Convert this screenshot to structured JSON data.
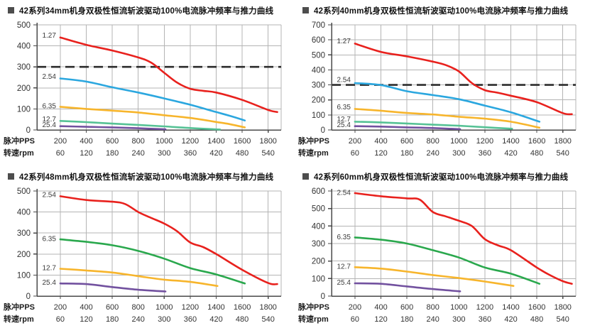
{
  "chart_data": [
    {
      "type": "line",
      "title": "42系列34mm机身双极性恒流斩波驱动100%电流脉冲频率与推力曲线",
      "x_pps_label": "脉冲PPS",
      "x_rpm_label": "转速rpm",
      "x_pps_ticks": [
        200,
        400,
        600,
        800,
        1000,
        1200,
        1400,
        1600,
        1800
      ],
      "x_rpm_ticks": [
        60,
        120,
        180,
        240,
        300,
        360,
        420,
        480,
        540
      ],
      "ylim": [
        0,
        500
      ],
      "ytick_step": 100,
      "grid": true,
      "dashed_line_y": 300,
      "series": [
        {
          "name": "1.27",
          "color": "#e8211d",
          "label_y": 450,
          "points": [
            [
              200,
              440
            ],
            [
              400,
              405
            ],
            [
              600,
              378
            ],
            [
              800,
              345
            ],
            [
              900,
              320
            ],
            [
              1000,
              272
            ],
            [
              1100,
              225
            ],
            [
              1200,
              196
            ],
            [
              1300,
              186
            ],
            [
              1400,
              178
            ],
            [
              1600,
              143
            ],
            [
              1800,
              95
            ],
            [
              1870,
              85
            ]
          ]
        },
        {
          "name": "2.54",
          "color": "#2ba7df",
          "label_y": 253,
          "points": [
            [
              200,
              245
            ],
            [
              400,
              230
            ],
            [
              600,
              203
            ],
            [
              800,
              178
            ],
            [
              1000,
              150
            ],
            [
              1200,
              120
            ],
            [
              1400,
              85
            ],
            [
              1500,
              68
            ],
            [
              1620,
              45
            ]
          ]
        },
        {
          "name": "6.35",
          "color": "#f7b52c",
          "label_y": 114,
          "points": [
            [
              200,
              110
            ],
            [
              400,
              100
            ],
            [
              600,
              92
            ],
            [
              800,
              83
            ],
            [
              1000,
              70
            ],
            [
              1200,
              57
            ],
            [
              1400,
              38
            ],
            [
              1500,
              28
            ],
            [
              1620,
              12
            ]
          ]
        },
        {
          "name": "12.7",
          "color": "#56c295",
          "label_y": 50,
          "points": [
            [
              200,
              43
            ],
            [
              400,
              37
            ],
            [
              600,
              30
            ],
            [
              800,
              24
            ],
            [
              1000,
              17
            ],
            [
              1200,
              9
            ],
            [
              1430,
              2
            ]
          ]
        },
        {
          "name": "25.4",
          "color": "#72519f",
          "label_y": 23,
          "points": [
            [
              200,
              18
            ],
            [
              400,
              15
            ],
            [
              600,
              12
            ],
            [
              800,
              8
            ],
            [
              1010,
              3
            ]
          ]
        }
      ]
    },
    {
      "type": "line",
      "title": "42系列40mm机身双极性恒流斩波驱动100%电流脉冲频率与推力曲线",
      "x_pps_label": "脉冲PPS",
      "x_rpm_label": "转速rpm",
      "x_pps_ticks": [
        200,
        400,
        600,
        800,
        1000,
        1200,
        1400,
        1600,
        1800
      ],
      "x_rpm_ticks": [
        60,
        120,
        180,
        240,
        300,
        360,
        420,
        480,
        540
      ],
      "ylim": [
        0,
        700
      ],
      "ytick_step": 100,
      "grid": true,
      "dashed_line_y": 300,
      "series": [
        {
          "name": "1.27",
          "color": "#e8211d",
          "label_y": 592,
          "points": [
            [
              200,
              575
            ],
            [
              400,
              520
            ],
            [
              600,
              490
            ],
            [
              800,
              455
            ],
            [
              900,
              432
            ],
            [
              1000,
              390
            ],
            [
              1100,
              312
            ],
            [
              1200,
              265
            ],
            [
              1300,
              248
            ],
            [
              1400,
              228
            ],
            [
              1600,
              185
            ],
            [
              1800,
              112
            ],
            [
              1870,
              105
            ]
          ]
        },
        {
          "name": "2.54",
          "color": "#2ba7df",
          "label_y": 333,
          "points": [
            [
              200,
              312
            ],
            [
              400,
              299
            ],
            [
              600,
              258
            ],
            [
              800,
              232
            ],
            [
              1000,
              205
            ],
            [
              1200,
              162
            ],
            [
              1400,
              118
            ],
            [
              1620,
              55
            ]
          ]
        },
        {
          "name": "6.35",
          "color": "#f7b52c",
          "label_y": 152,
          "points": [
            [
              200,
              140
            ],
            [
              400,
              128
            ],
            [
              600,
              113
            ],
            [
              800,
              103
            ],
            [
              1000,
              88
            ],
            [
              1200,
              75
            ],
            [
              1400,
              55
            ],
            [
              1620,
              15
            ]
          ]
        },
        {
          "name": "12.7",
          "color": "#56c295",
          "label_y": 70,
          "points": [
            [
              200,
              55
            ],
            [
              400,
              50
            ],
            [
              600,
              43
            ],
            [
              800,
              35
            ],
            [
              1000,
              28
            ],
            [
              1200,
              18
            ],
            [
              1410,
              8
            ]
          ]
        },
        {
          "name": "25.4",
          "color": "#72519f",
          "label_y": 33,
          "points": [
            [
              200,
              25
            ],
            [
              400,
              22
            ],
            [
              600,
              17
            ],
            [
              800,
              13
            ],
            [
              1010,
              5
            ]
          ]
        }
      ]
    },
    {
      "type": "line",
      "title": "42系列48mm机身双极性恒流斩波驱动100%电流脉冲频率与推力曲线",
      "x_pps_label": "脉冲PPS",
      "x_rpm_label": "转速rpm",
      "x_pps_ticks": [
        200,
        400,
        600,
        800,
        1000,
        1200,
        1400,
        1600,
        1800
      ],
      "x_rpm_ticks": [
        60,
        120,
        180,
        240,
        300,
        360,
        420,
        480,
        540
      ],
      "ylim": [
        0,
        500
      ],
      "ytick_step": 100,
      "grid": true,
      "dashed_line_y": null,
      "series": [
        {
          "name": "2.54",
          "color": "#e8211d",
          "label_y": 481,
          "points": [
            [
              200,
              475
            ],
            [
              400,
              457
            ],
            [
              600,
              449
            ],
            [
              700,
              438
            ],
            [
              800,
              400
            ],
            [
              900,
              372
            ],
            [
              1000,
              345
            ],
            [
              1100,
              308
            ],
            [
              1200,
              255
            ],
            [
              1300,
              233
            ],
            [
              1400,
              200
            ],
            [
              1600,
              125
            ],
            [
              1800,
              62
            ],
            [
              1870,
              57
            ]
          ]
        },
        {
          "name": "6.35",
          "color": "#2aa84d",
          "label_y": 272,
          "points": [
            [
              200,
              270
            ],
            [
              400,
              258
            ],
            [
              600,
              242
            ],
            [
              800,
              215
            ],
            [
              1000,
              178
            ],
            [
              1200,
              133
            ],
            [
              1400,
              103
            ],
            [
              1620,
              60
            ]
          ]
        },
        {
          "name": "12.7",
          "color": "#f7b52c",
          "label_y": 134,
          "points": [
            [
              200,
              130
            ],
            [
              400,
              122
            ],
            [
              600,
              112
            ],
            [
              800,
              95
            ],
            [
              1000,
              78
            ],
            [
              1200,
              68
            ],
            [
              1410,
              48
            ]
          ]
        },
        {
          "name": "25.4",
          "color": "#72519f",
          "label_y": 64,
          "points": [
            [
              200,
              60
            ],
            [
              400,
              57
            ],
            [
              600,
              43
            ],
            [
              800,
              30
            ],
            [
              1010,
              22
            ]
          ]
        }
      ]
    },
    {
      "type": "line",
      "title": "42系列60mm机身双极性恒流斩波驱动100%电流脉冲频率与推力曲线",
      "x_pps_label": "脉冲PPS",
      "x_rpm_label": "转速rpm",
      "x_pps_ticks": [
        200,
        400,
        600,
        800,
        1000,
        1200,
        1400,
        1600,
        1800
      ],
      "x_rpm_ticks": [
        60,
        120,
        180,
        240,
        300,
        360,
        420,
        480,
        540
      ],
      "ylim": [
        0,
        600
      ],
      "ytick_step": 100,
      "grid": true,
      "dashed_line_y": null,
      "series": [
        {
          "name": "2.54",
          "color": "#e8211d",
          "label_y": 590,
          "points": [
            [
              200,
              588
            ],
            [
              400,
              570
            ],
            [
              600,
              558
            ],
            [
              700,
              550
            ],
            [
              800,
              480
            ],
            [
              900,
              455
            ],
            [
              1000,
              430
            ],
            [
              1100,
              400
            ],
            [
              1200,
              325
            ],
            [
              1300,
              290
            ],
            [
              1400,
              262
            ],
            [
              1600,
              163
            ],
            [
              1700,
              120
            ],
            [
              1800,
              85
            ],
            [
              1870,
              70
            ]
          ]
        },
        {
          "name": "6.35",
          "color": "#2aa84d",
          "label_y": 337,
          "points": [
            [
              200,
              335
            ],
            [
              400,
              322
            ],
            [
              600,
              300
            ],
            [
              800,
              262
            ],
            [
              1000,
              220
            ],
            [
              1200,
              163
            ],
            [
              1400,
              128
            ],
            [
              1620,
              70
            ]
          ]
        },
        {
          "name": "12.7",
          "color": "#f7b52c",
          "label_y": 168,
          "points": [
            [
              200,
              165
            ],
            [
              400,
              157
            ],
            [
              600,
              140
            ],
            [
              800,
              120
            ],
            [
              1000,
              103
            ],
            [
              1200,
              83
            ],
            [
              1420,
              58
            ]
          ]
        },
        {
          "name": "25.4",
          "color": "#72519f",
          "label_y": 77,
          "points": [
            [
              200,
              73
            ],
            [
              400,
              70
            ],
            [
              600,
              55
            ],
            [
              800,
              40
            ],
            [
              1010,
              27
            ]
          ]
        }
      ]
    }
  ],
  "style_colors": {
    "grid": "#b4b4b4",
    "axis": "#4a4a4a",
    "dashed_line": "#2d2d2d",
    "tick_text": "#333333",
    "series_label_text": "#3a3a3a"
  }
}
